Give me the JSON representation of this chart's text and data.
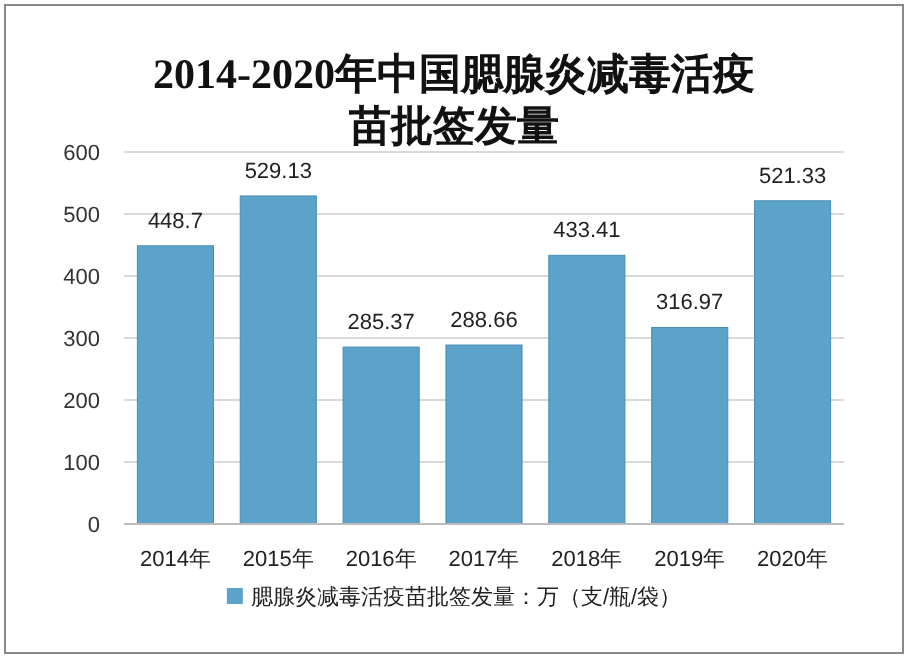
{
  "chart_data": {
    "type": "bar",
    "title": "2014-2020年中国腮腺炎减毒活疫苗批签发量",
    "categories": [
      "2014年",
      "2015年",
      "2016年",
      "2017年",
      "2018年",
      "2019年",
      "2020年"
    ],
    "series": [
      {
        "name": "腮腺炎减毒活疫苗批签发量：万（支/瓶/袋）",
        "color": "#5ba3c9",
        "values": [
          448.7,
          529.13,
          285.37,
          288.66,
          433.41,
          316.97,
          521.33
        ]
      }
    ],
    "ylim": [
      0,
      600
    ],
    "yticks": [
      0,
      100,
      200,
      300,
      400,
      500,
      600
    ],
    "grid": "y",
    "legend": "bottom",
    "data_labels": true
  }
}
